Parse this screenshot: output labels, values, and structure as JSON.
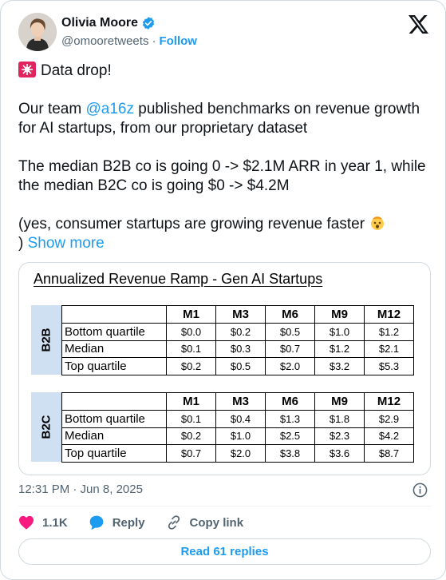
{
  "author": {
    "display_name": "Olivia Moore",
    "handle": "@omooretweets",
    "separator": "·",
    "follow_label": "Follow"
  },
  "tweet": {
    "line1": "Data drop!",
    "p2_before": "Our team ",
    "p2_mention": "@a16z",
    "p2_after": " published benchmarks on revenue growth for AI startups, from our proprietary dataset",
    "p3": "The median B2B co is going 0 -> $2.1M ARR in year 1, while the median B2C co is going $0 -> $4.2M",
    "p4_line1": "(yes, consumer startups are growing revenue faster",
    "p4_line2_prefix": ") ",
    "show_more": "Show more"
  },
  "media": {
    "title": "Annualized Revenue Ramp - Gen AI Startups",
    "columns": [
      "M1",
      "M3",
      "M6",
      "M9",
      "M12"
    ],
    "segments": [
      {
        "label": "B2B",
        "rows": [
          {
            "name": "Bottom quartile",
            "values": [
              "$0.0",
              "$0.2",
              "$0.5",
              "$1.0",
              "$1.2"
            ]
          },
          {
            "name": "Median",
            "values": [
              "$0.1",
              "$0.3",
              "$0.7",
              "$1.2",
              "$2.1"
            ]
          },
          {
            "name": "Top quartile",
            "values": [
              "$0.2",
              "$0.5",
              "$2.0",
              "$3.2",
              "$5.3"
            ]
          }
        ]
      },
      {
        "label": "B2C",
        "rows": [
          {
            "name": "Bottom quartile",
            "values": [
              "$0.1",
              "$0.4",
              "$1.3",
              "$1.8",
              "$2.9"
            ]
          },
          {
            "name": "Median",
            "values": [
              "$0.2",
              "$1.0",
              "$2.5",
              "$2.3",
              "$4.2"
            ]
          },
          {
            "name": "Top quartile",
            "values": [
              "$0.7",
              "$2.0",
              "$3.8",
              "$3.6",
              "$8.7"
            ]
          }
        ]
      }
    ]
  },
  "footer": {
    "timestamp": "12:31 PM · Jun 8, 2025",
    "like_count": "1.1K",
    "reply_label": "Reply",
    "copy_link_label": "Copy link",
    "read_replies_label": "Read 61 replies"
  },
  "colors": {
    "link": "#1d9bf0",
    "like": "#f91880",
    "secondary_text": "#536471",
    "segment_fill": "#cfe0f3"
  },
  "icons": [
    "verified-badge-icon",
    "x-logo-icon",
    "siren-icon",
    "mind-blown-emoji-icon",
    "info-icon",
    "heart-icon",
    "reply-icon",
    "link-icon"
  ]
}
